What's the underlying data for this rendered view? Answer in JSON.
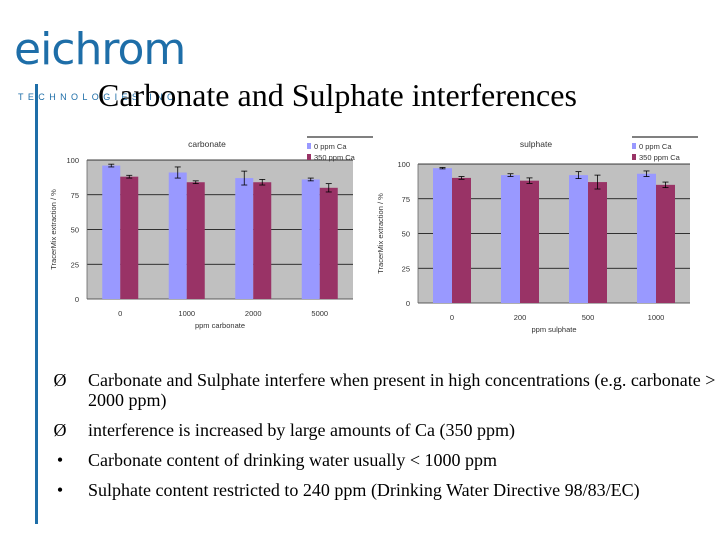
{
  "logo": {
    "wordmark": "eichrom",
    "tagline": "TECHNOLOGIES   INC"
  },
  "title": "Carbonate and Sulphate interferences",
  "chart_data": [
    {
      "type": "bar",
      "title": "carbonate",
      "xlabel": "ppm carbonate",
      "ylabel": "TracerMix extraction / %",
      "categories": [
        "0",
        "1000",
        "2000",
        "5000"
      ],
      "ylim": [
        0,
        100
      ],
      "yticks": [
        "0",
        "25",
        "50",
        "75",
        "100"
      ],
      "grid": true,
      "legend": "top-right",
      "series": [
        {
          "name": "0 ppm Ca",
          "color": "#9999ff",
          "values": [
            96,
            91,
            87,
            86
          ],
          "errors": [
            1,
            4,
            5,
            1
          ]
        },
        {
          "name": "350 ppm Ca",
          "color": "#993366",
          "values": [
            88,
            84,
            84,
            80
          ],
          "errors": [
            1,
            1,
            2,
            3
          ]
        }
      ]
    },
    {
      "type": "bar",
      "title": "sulphate",
      "xlabel": "ppm sulphate",
      "ylabel": "TracerMix extraction / %",
      "categories": [
        "0",
        "200",
        "500",
        "1000"
      ],
      "ylim": [
        0,
        100
      ],
      "yticks": [
        "0",
        "25",
        "50",
        "75",
        "100"
      ],
      "grid": true,
      "legend": "top-right",
      "series": [
        {
          "name": "0 ppm Ca",
          "color": "#9999ff",
          "values": [
            97,
            92,
            92,
            93
          ],
          "errors": [
            0.5,
            1,
            2.5,
            2
          ]
        },
        {
          "name": "350 ppm Ca",
          "color": "#993366",
          "values": [
            90,
            88,
            87,
            85
          ],
          "errors": [
            1,
            2,
            5,
            2
          ]
        }
      ]
    }
  ],
  "bullets": [
    {
      "marker": "Ø",
      "text": "Carbonate and Sulphate interfere when present in high concentrations (e.g. carbonate > 2000 ppm)"
    },
    {
      "marker": "Ø",
      "text": "interference is increased by large amounts of Ca (350 ppm)"
    },
    {
      "marker": "•",
      "text": "Carbonate content of drinking water usually < 1000 ppm"
    },
    {
      "marker": "•",
      "text": "Sulphate content restricted to 240 ppm (Drinking Water Directive 98/83/EC)"
    }
  ]
}
